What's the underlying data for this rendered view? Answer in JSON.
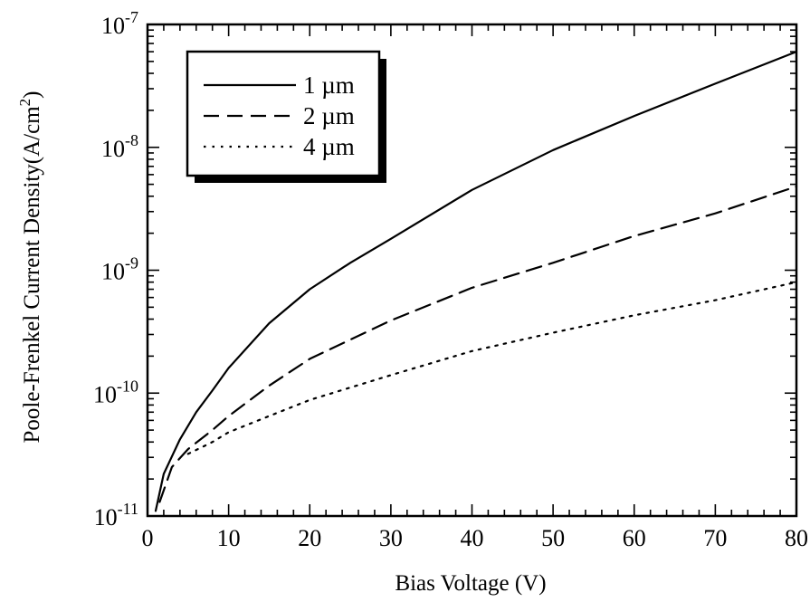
{
  "chart_data": {
    "type": "line",
    "title": "",
    "xlabel": "Bias Voltage (V)",
    "ylabel": "Poole-Frenkel Current Density(A/cm²)",
    "xlim": [
      0,
      80
    ],
    "ylim": [
      1e-11,
      1e-07
    ],
    "yscale": "log",
    "grid": false,
    "legend_position": "top-left",
    "x_ticks": [
      "0",
      "10",
      "20",
      "30",
      "40",
      "50",
      "60",
      "70",
      "80"
    ],
    "y_ticks": [
      {
        "base": "10",
        "exp": "-11"
      },
      {
        "base": "10",
        "exp": "-10"
      },
      {
        "base": "10",
        "exp": "-9"
      },
      {
        "base": "10",
        "exp": "-8"
      },
      {
        "base": "10",
        "exp": "-7"
      }
    ],
    "series": [
      {
        "name": "1 µm",
        "style": "solid",
        "x": [
          1,
          2,
          4,
          6,
          8,
          10,
          15,
          20,
          25,
          30,
          40,
          50,
          60,
          70,
          80
        ],
        "y": [
          1.1e-11,
          2.2e-11,
          4.2e-11,
          7e-11,
          1.05e-10,
          1.6e-10,
          3.7e-10,
          7e-10,
          1.15e-09,
          1.8e-09,
          4.5e-09,
          9.5e-09,
          1.8e-08,
          3.3e-08,
          6e-08
        ]
      },
      {
        "name": "2 µm",
        "style": "dashed",
        "x": [
          1.5,
          3,
          5,
          8,
          10,
          15,
          20,
          30,
          40,
          50,
          60,
          70,
          80
        ],
        "y": [
          1.3e-11,
          2.5e-11,
          3.5e-11,
          5e-11,
          6.5e-11,
          1.15e-10,
          1.9e-10,
          3.9e-10,
          7.2e-10,
          1.15e-09,
          1.9e-09,
          2.9e-09,
          4.8e-09
        ]
      },
      {
        "name": "4 µm",
        "style": "dotted",
        "x": [
          5,
          8,
          10,
          15,
          20,
          30,
          40,
          50,
          60,
          70,
          80
        ],
        "y": [
          3.2e-11,
          4e-11,
          4.8e-11,
          6.5e-11,
          8.8e-11,
          1.4e-10,
          2.2e-10,
          3.1e-10,
          4.3e-10,
          5.7e-10,
          8e-10
        ]
      }
    ]
  }
}
